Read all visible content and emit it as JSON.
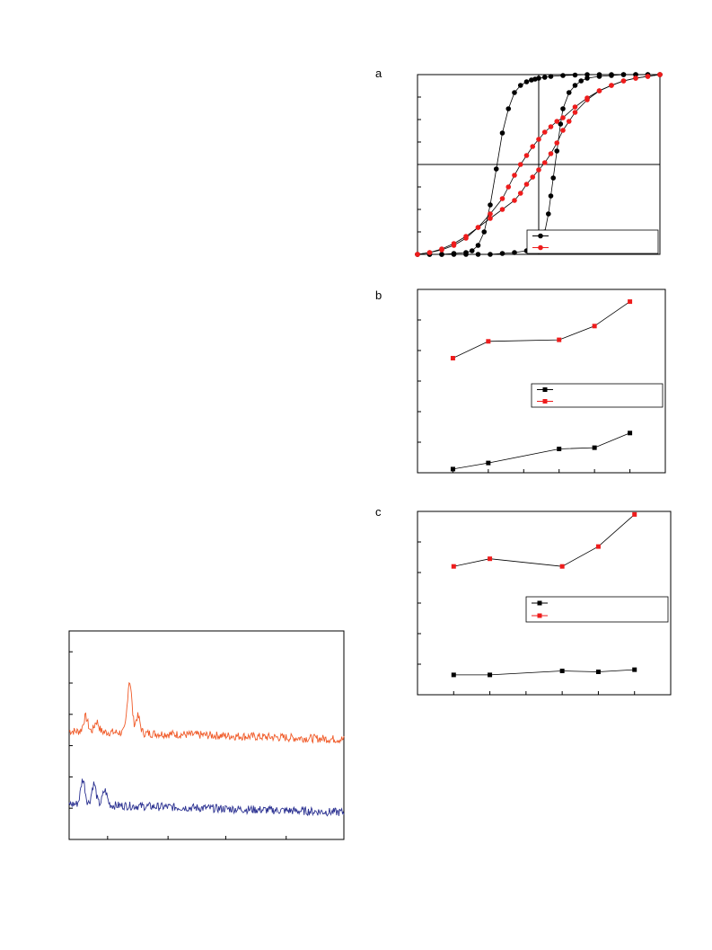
{
  "panels": {
    "a": "a",
    "b": "b",
    "c": "c"
  },
  "colors": {
    "black_series": "#000000",
    "red_series": "#ee1c1c",
    "orange_spectrum": "#f05a28",
    "blue_spectrum": "#2b3191"
  },
  "chart_data": [
    {
      "id": "panel-a",
      "type": "line",
      "title": "",
      "xlabel": "",
      "ylabel": "",
      "xlim": [
        -1,
        1
      ],
      "ylim": [
        -1,
        1
      ],
      "grid": false,
      "crosshair": {
        "x": 0,
        "y": 0
      },
      "legend": {
        "placement": "bottom-right",
        "entries": [
          "",
          ""
        ]
      },
      "series": [
        {
          "color": "#000000",
          "marker": "circle",
          "loops": [
            {
              "x": [
                -1.0,
                -0.9,
                -0.8,
                -0.7,
                -0.6,
                -0.55,
                -0.5,
                -0.45,
                -0.4,
                -0.35,
                -0.3,
                -0.25,
                -0.2,
                -0.15,
                -0.1,
                -0.06,
                -0.03,
                0.0,
                0.05,
                0.1,
                0.2,
                0.3,
                0.4,
                0.5,
                0.6,
                0.7,
                0.8,
                0.9,
                1.0
              ],
              "y": [
                -1.0,
                -1.0,
                -1.0,
                -0.99,
                -0.98,
                -0.96,
                -0.9,
                -0.75,
                -0.45,
                -0.05,
                0.35,
                0.62,
                0.8,
                0.88,
                0.92,
                0.94,
                0.95,
                0.96,
                0.97,
                0.98,
                0.99,
                0.995,
                1.0,
                1.0,
                1.0,
                1.0,
                1.0,
                1.0,
                1.0
              ]
            },
            {
              "x": [
                1.0,
                0.9,
                0.8,
                0.7,
                0.6,
                0.5,
                0.4,
                0.35,
                0.3,
                0.25,
                0.2,
                0.18,
                0.15,
                0.12,
                0.1,
                0.08,
                0.05,
                0.02,
                0.0,
                -0.05,
                -0.1,
                -0.2,
                -0.3,
                -0.4,
                -0.5,
                -0.6,
                -0.7,
                -0.8,
                -0.9,
                -1.0
              ],
              "y": [
                1.0,
                1.0,
                1.0,
                1.0,
                0.99,
                0.98,
                0.96,
                0.93,
                0.88,
                0.8,
                0.62,
                0.45,
                0.15,
                -0.15,
                -0.35,
                -0.55,
                -0.75,
                -0.85,
                -0.9,
                -0.94,
                -0.96,
                -0.98,
                -0.99,
                -1.0,
                -1.0,
                -1.0,
                -1.0,
                -1.0,
                -1.0,
                -1.0
              ]
            }
          ]
        },
        {
          "color": "#ee1c1c",
          "marker": "circle",
          "loops": [
            {
              "x": [
                -1.0,
                -0.9,
                -0.8,
                -0.7,
                -0.6,
                -0.5,
                -0.4,
                -0.3,
                -0.25,
                -0.2,
                -0.15,
                -0.1,
                -0.05,
                0.0,
                0.05,
                0.1,
                0.15,
                0.2,
                0.3,
                0.4,
                0.5,
                0.6,
                0.7,
                0.8,
                0.9,
                1.0
              ],
              "y": [
                -1.0,
                -0.98,
                -0.95,
                -0.9,
                -0.82,
                -0.7,
                -0.55,
                -0.38,
                -0.25,
                -0.12,
                0.0,
                0.1,
                0.2,
                0.28,
                0.36,
                0.42,
                0.48,
                0.52,
                0.64,
                0.74,
                0.82,
                0.88,
                0.93,
                0.96,
                0.98,
                1.0
              ]
            },
            {
              "x": [
                1.0,
                0.9,
                0.8,
                0.7,
                0.6,
                0.5,
                0.4,
                0.3,
                0.25,
                0.2,
                0.15,
                0.1,
                0.05,
                0.0,
                -0.05,
                -0.1,
                -0.15,
                -0.2,
                -0.3,
                -0.4,
                -0.5,
                -0.6,
                -0.7,
                -0.8,
                -0.9,
                -1.0
              ],
              "y": [
                1.0,
                0.98,
                0.96,
                0.93,
                0.88,
                0.82,
                0.72,
                0.58,
                0.48,
                0.38,
                0.24,
                0.12,
                0.02,
                -0.06,
                -0.14,
                -0.22,
                -0.32,
                -0.4,
                -0.5,
                -0.6,
                -0.7,
                -0.8,
                -0.88,
                -0.94,
                -0.98,
                -1.0
              ]
            }
          ]
        }
      ]
    },
    {
      "id": "panel-b",
      "type": "line",
      "title": "",
      "xlabel": "",
      "ylabel": "",
      "x": [
        1,
        2,
        4,
        5,
        6
      ],
      "xlim": [
        0,
        7
      ],
      "ylim": [
        0,
        6
      ],
      "grid": false,
      "legend": {
        "placement": "right",
        "entries": [
          "",
          ""
        ]
      },
      "series": [
        {
          "color": "#000000",
          "marker": "square",
          "values": [
            0.12,
            0.32,
            0.78,
            0.82,
            1.3
          ]
        },
        {
          "color": "#ee1c1c",
          "marker": "square",
          "values": [
            3.75,
            4.3,
            4.35,
            4.8,
            5.6
          ]
        }
      ]
    },
    {
      "id": "panel-c",
      "type": "line",
      "title": "",
      "xlabel": "",
      "ylabel": "",
      "x": [
        1,
        2,
        4,
        5,
        6
      ],
      "xlim": [
        0,
        7
      ],
      "ylim": [
        0,
        6
      ],
      "grid": false,
      "legend": {
        "placement": "right",
        "entries": [
          "",
          ""
        ]
      },
      "series": [
        {
          "color": "#000000",
          "marker": "square",
          "values": [
            0.65,
            0.65,
            0.78,
            0.75,
            0.82
          ]
        },
        {
          "color": "#ee1c1c",
          "marker": "square",
          "values": [
            4.2,
            4.45,
            4.2,
            4.85,
            5.9
          ]
        }
      ]
    },
    {
      "id": "panel-d",
      "type": "line",
      "title": "",
      "xlabel": "",
      "ylabel": "",
      "xlim": [
        0,
        1
      ],
      "ylim": [
        0,
        1
      ],
      "grid": false,
      "series": [
        {
          "color": "#f05a28",
          "baseline": 0.52,
          "peaks": [
            {
              "x": 0.06,
              "h": 0.07
            },
            {
              "x": 0.1,
              "h": 0.05
            },
            {
              "x": 0.22,
              "h": 0.25
            },
            {
              "x": 0.25,
              "h": 0.08
            }
          ]
        },
        {
          "color": "#2b3191",
          "baseline": 0.17,
          "peaks": [
            {
              "x": 0.05,
              "h": 0.12
            },
            {
              "x": 0.09,
              "h": 0.1
            },
            {
              "x": 0.13,
              "h": 0.07
            }
          ]
        }
      ]
    }
  ]
}
